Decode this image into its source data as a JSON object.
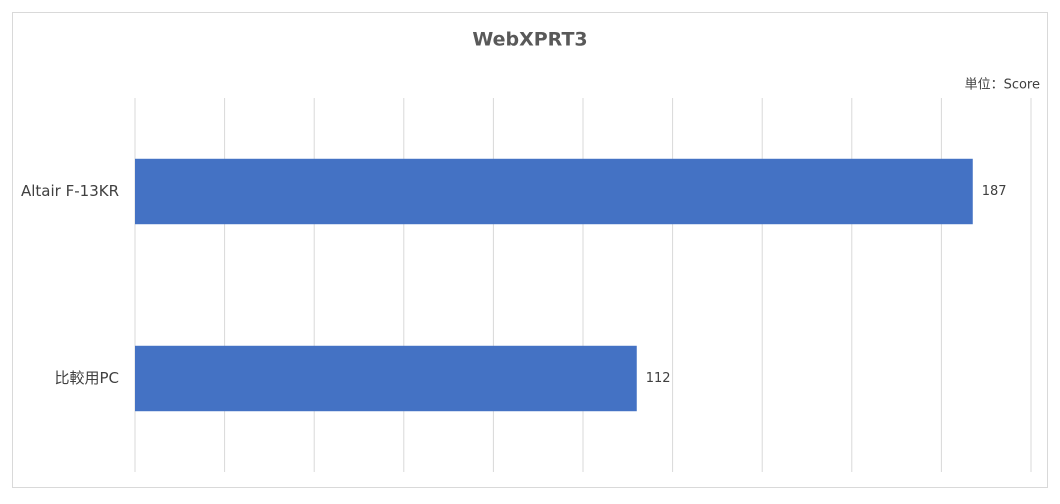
{
  "chart_data": {
    "type": "hbar",
    "title": "WebXPRT3",
    "unit_label": "単位：Score",
    "categories": [
      "Altair F-13KR",
      "比較用PC"
    ],
    "values": [
      187,
      112
    ],
    "color": "#4472c4",
    "xlim": [
      0,
      200
    ],
    "xticks": [
      0,
      20,
      40,
      60,
      80,
      100,
      120,
      140,
      160,
      180,
      200
    ],
    "grid": true
  }
}
